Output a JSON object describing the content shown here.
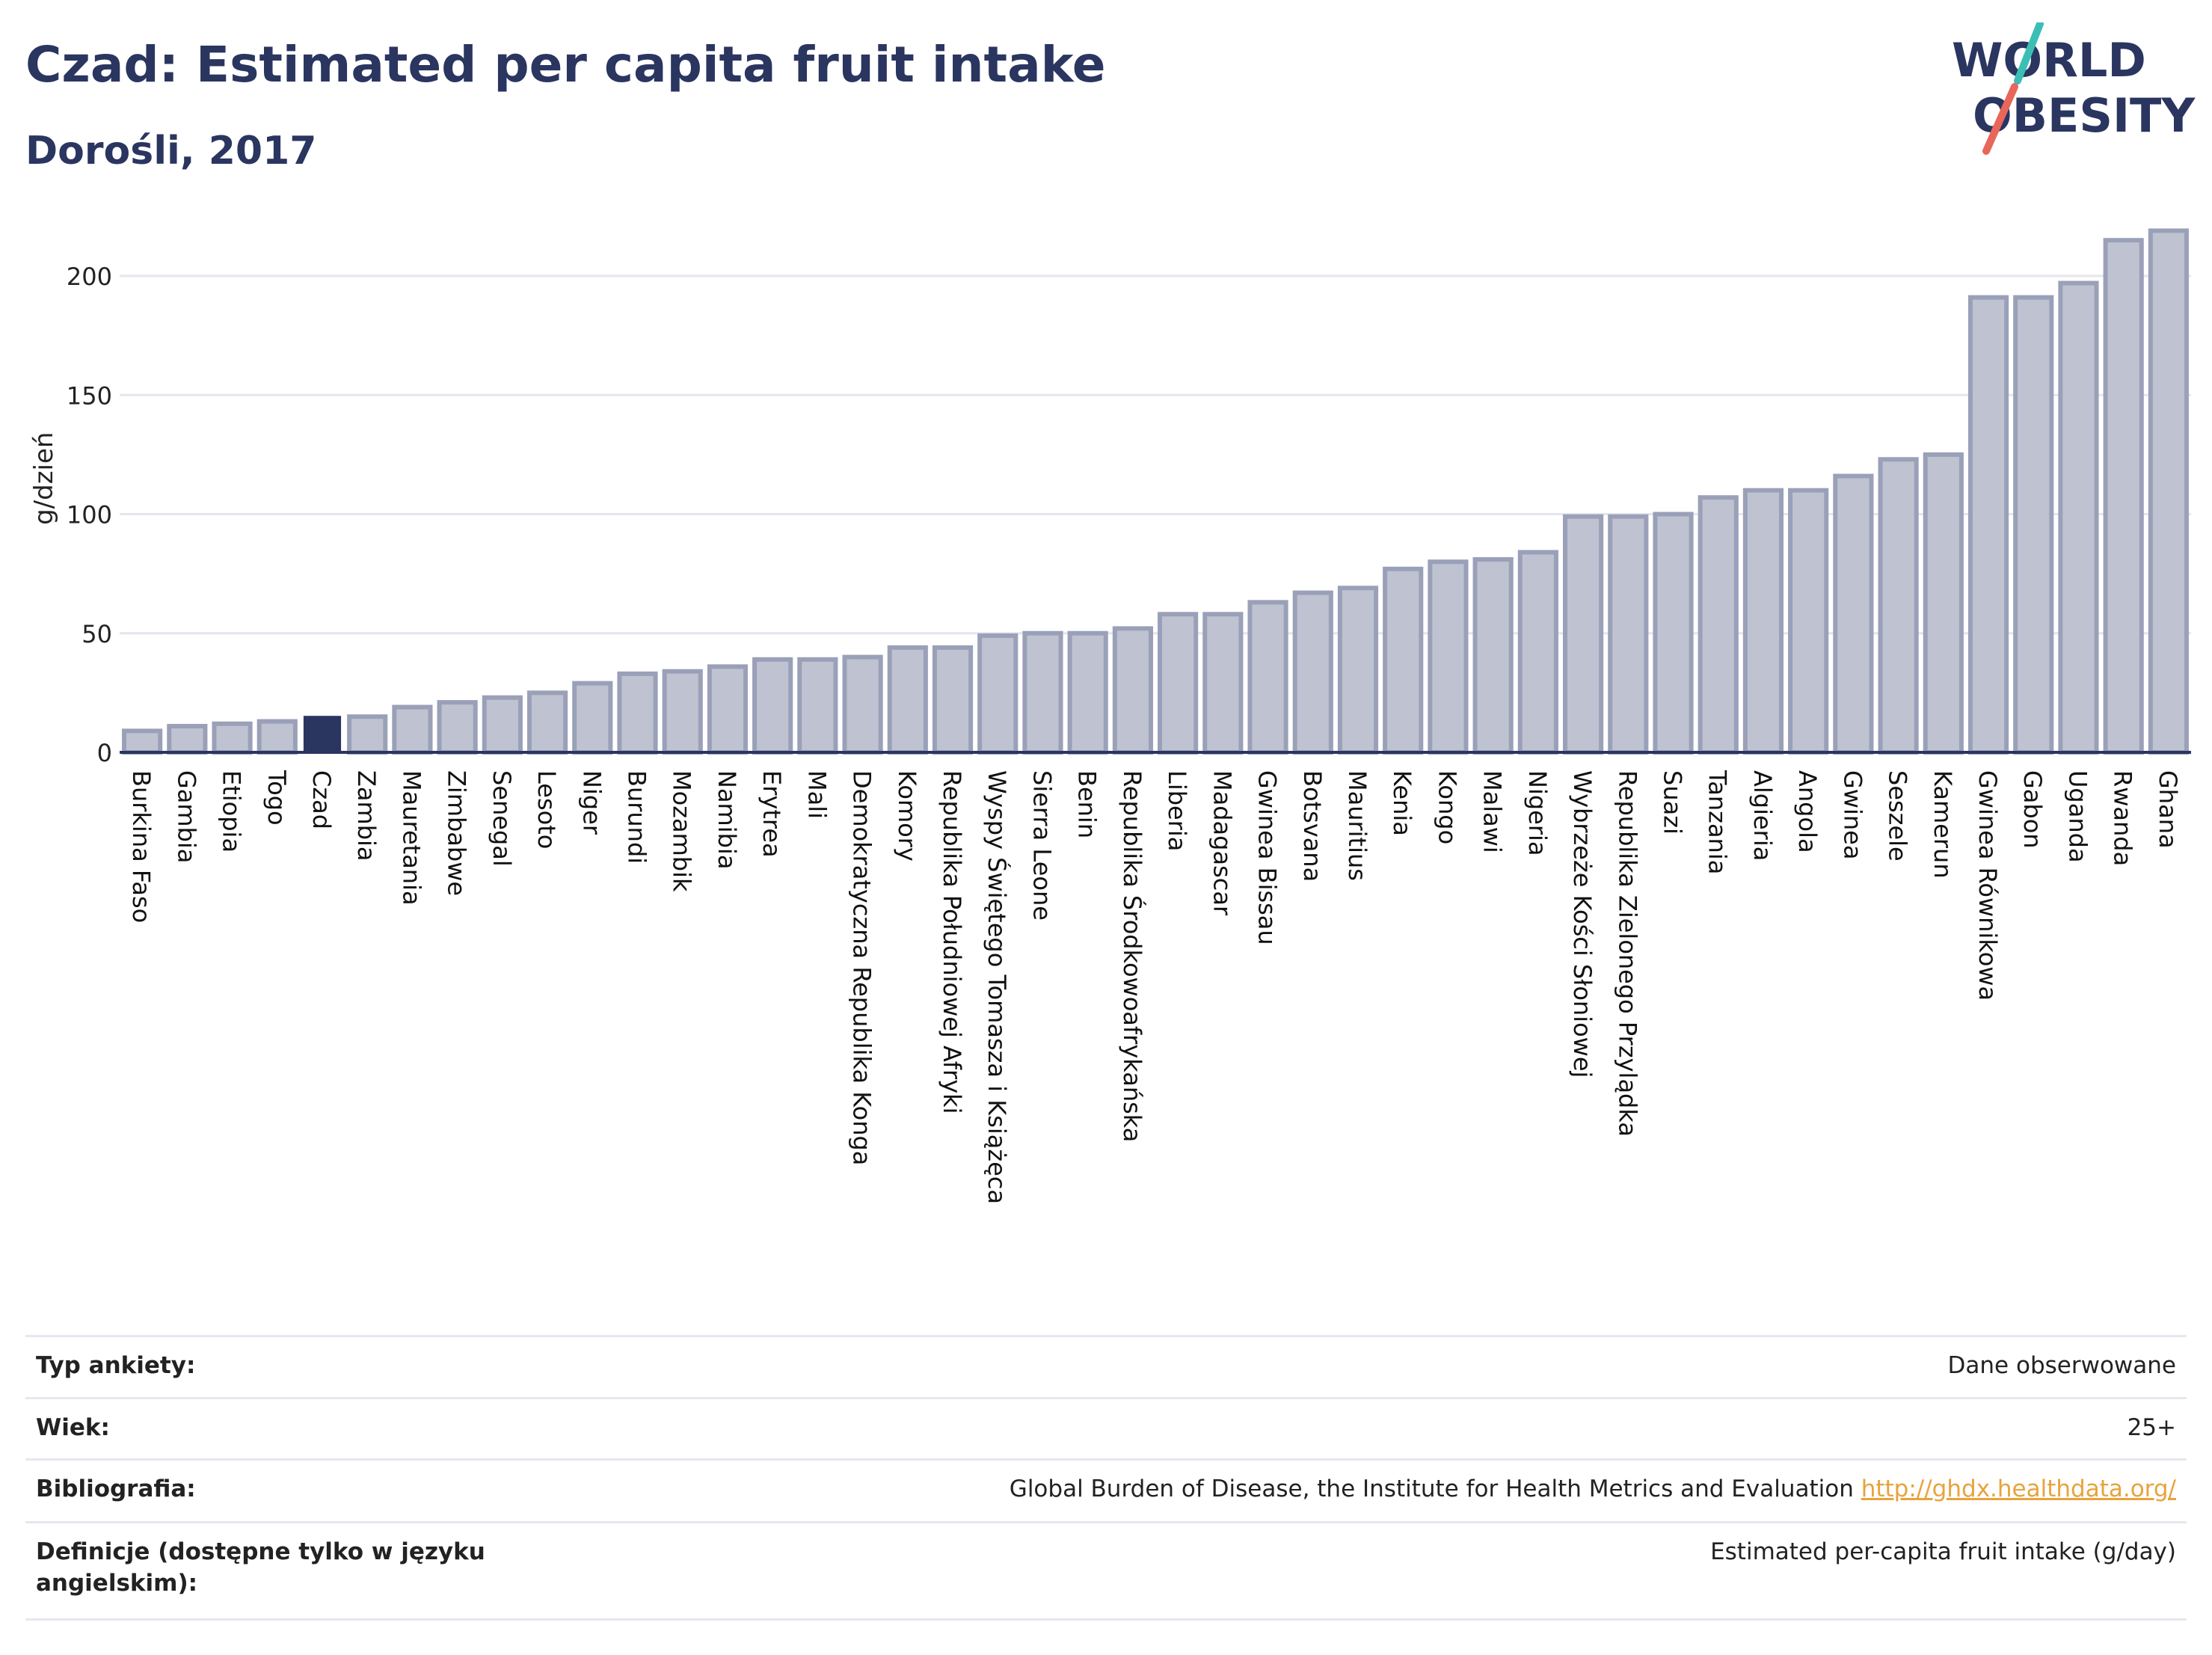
{
  "header": {
    "title": "Czad: Estimated per capita fruit intake",
    "subtitle": "Dorośli, 2017",
    "logo_line1": "WORLD",
    "logo_line2": "OBESITY"
  },
  "colors": {
    "bar": "#bfc3d1",
    "bar_stroke": "#9aa0b8",
    "highlight": "#2a3560",
    "title": "#2a3560",
    "logo_teal": "#3bbfb5",
    "logo_red": "#e8665a",
    "link": "#e8a33b"
  },
  "chart_data": {
    "type": "bar",
    "ylabel": "g/dzień",
    "ylim": [
      0,
      230
    ],
    "yticks": [
      0,
      50,
      100,
      150,
      200
    ],
    "grid": true,
    "highlight": "Czad",
    "categories": [
      "Burkina Faso",
      "Gambia",
      "Etiopia",
      "Togo",
      "Czad",
      "Zambia",
      "Mauretania",
      "Zimbabwe",
      "Senegal",
      "Lesoto",
      "Niger",
      "Burundi",
      "Mozambik",
      "Namibia",
      "Erytrea",
      "Mali",
      "Demokratyczna Republika Konga",
      "Komory",
      "Republika Południowej Afryki",
      "Wyspy Świętego Tomasza i Książęca",
      "Sierra Leone",
      "Benin",
      "Republika Środkowoafrykańska",
      "Liberia",
      "Madagascar",
      "Gwinea Bissau",
      "Botsvana",
      "Mauritius",
      "Kenia",
      "Kongo",
      "Malawi",
      "Nigeria",
      "Wybrzeże Kości Słoniowej",
      "Republika Zielonego Przylądka",
      "Suazi",
      "Tanzania",
      "Algieria",
      "Angola",
      "Gwinea",
      "Seszele",
      "Kamerun",
      "Gwinea Równikowa",
      "Gabon",
      "Uganda",
      "Rwanda",
      "Ghana"
    ],
    "values": [
      9,
      11,
      12,
      13,
      15,
      15,
      19,
      21,
      23,
      25,
      29,
      33,
      34,
      36,
      39,
      39,
      40,
      44,
      44,
      49,
      50,
      50,
      52,
      58,
      58,
      63,
      67,
      69,
      77,
      80,
      81,
      84,
      99,
      99,
      100,
      107,
      110,
      110,
      116,
      123,
      125,
      191,
      191,
      197,
      215,
      219
    ]
  },
  "meta": {
    "rows": [
      {
        "label": "Typ ankiety:",
        "value": "Dane obserwowane",
        "link": ""
      },
      {
        "label": "Wiek:",
        "value": "25+",
        "link": ""
      },
      {
        "label": "Bibliografia:",
        "value": "Global Burden of Disease, the Institute for Health Metrics and Evaluation",
        "link": "http://ghdx.healthdata.org/"
      },
      {
        "label": "Definicje (dostępne tylko w języku angielskim):",
        "value": "Estimated per-capita fruit intake (g/day)",
        "link": ""
      }
    ]
  }
}
